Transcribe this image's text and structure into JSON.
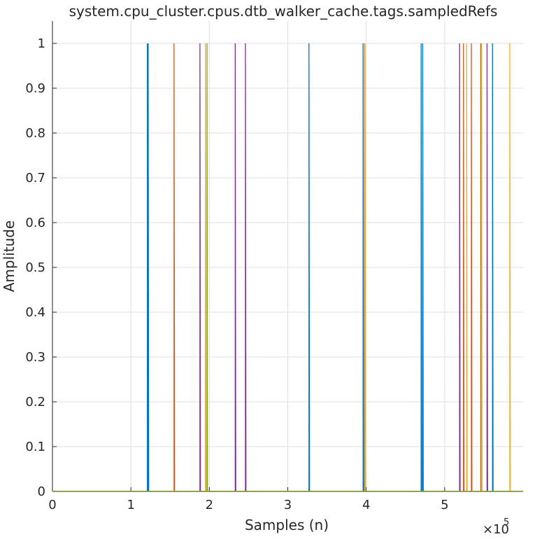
{
  "chart_data": {
    "type": "line",
    "title": "system.cpu_cluster.cpus.dtb_walker_cache.tags.sampledRefs",
    "xlabel": "Samples (n)",
    "ylabel": "Amplitude",
    "xlim": [
      0,
      600000
    ],
    "ylim": [
      0,
      1.05
    ],
    "x_exponent_label": "×10",
    "x_exponent_power": "5",
    "x_ticks": [
      0,
      100000,
      200000,
      300000,
      400000,
      500000
    ],
    "x_tick_labels": [
      "0",
      "1",
      "2",
      "3",
      "4",
      "5"
    ],
    "y_ticks": [
      0,
      0.1,
      0.2,
      0.3,
      0.4,
      0.5,
      0.6,
      0.7,
      0.8,
      0.9,
      1
    ],
    "y_tick_labels": [
      "0",
      "0.1",
      "0.2",
      "0.3",
      "0.4",
      "0.5",
      "0.6",
      "0.7",
      "0.8",
      "0.9",
      "1"
    ],
    "grid": true,
    "series": [
      {
        "color": "#0072BD",
        "spikes": [
          121000,
          122000,
          327000,
          396000,
          470000,
          472000,
          561000
        ]
      },
      {
        "color": "#D95319",
        "spikes": [
          155000,
          398000,
          524000,
          534000,
          546000
        ]
      },
      {
        "color": "#EDB120",
        "spikes": [
          195000,
          398500,
          528000,
          547000,
          583000
        ]
      },
      {
        "color": "#7E2F8E",
        "spikes": [
          188000,
          233000,
          246000,
          519000,
          554000
        ]
      },
      {
        "color": "#77AC30",
        "spikes": [
          197000
        ]
      }
    ]
  }
}
